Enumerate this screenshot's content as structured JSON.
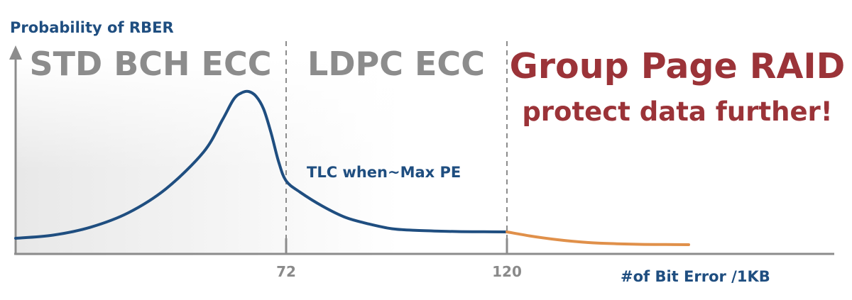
{
  "chart_data": {
    "type": "line",
    "ylabel": "Probability of RBER",
    "xlabel": "#of Bit Error /1KB",
    "x_ticks": [
      "72",
      "120"
    ],
    "x_tick_values": [
      72,
      120
    ],
    "regions": [
      {
        "label": "STD BCH ECC",
        "x_from": 0,
        "x_to": 72
      },
      {
        "label": "LDPC ECC",
        "x_from": 72,
        "x_to": 120
      },
      {
        "label_line1": "Group Page RAID",
        "label_line2": "protect data further!",
        "x_from": 120,
        "x_to": 160
      }
    ],
    "dividers": [
      72,
      120
    ],
    "series": [
      {
        "name": "TLC when~Max PE",
        "color": "#1f4e80",
        "x": [
          0,
          10,
          20,
          30,
          40,
          50,
          55,
          58,
          60,
          62,
          64,
          66,
          68,
          70,
          72,
          75,
          80,
          85,
          90,
          95,
          100,
          105,
          110,
          115,
          120
        ],
        "y": [
          0.04,
          0.06,
          0.11,
          0.2,
          0.35,
          0.58,
          0.78,
          0.91,
          0.95,
          0.96,
          0.93,
          0.85,
          0.7,
          0.52,
          0.4,
          0.33,
          0.24,
          0.17,
          0.13,
          0.1,
          0.09,
          0.085,
          0.082,
          0.081,
          0.08
        ]
      },
      {
        "name": "",
        "color": "#e0904a",
        "x": [
          120,
          125,
          130,
          135,
          140,
          145,
          150,
          155,
          160
        ],
        "y": [
          0.08,
          0.055,
          0.035,
          0.02,
          0.01,
          0.005,
          0.002,
          0.001,
          0.0
        ]
      }
    ],
    "xlim": [
      0,
      185
    ],
    "ylim": [
      0,
      1.0
    ],
    "grid": false,
    "colors": {
      "axis": "#8c8c8c",
      "primary": "#1f4e80",
      "tail": "#e0904a",
      "accent": "#9b3338"
    }
  }
}
